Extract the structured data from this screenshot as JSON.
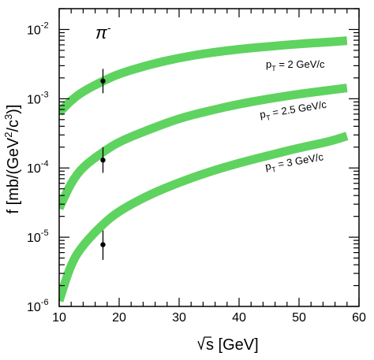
{
  "chart_data": {
    "type": "line",
    "title": "π⁻",
    "title_base": "π",
    "title_sup": "-",
    "xlabel": "√s [GeV]",
    "xlabel_text": "s [GeV]",
    "ylabel": "f [mb/(GeV²/c³)]",
    "ylabel_parts": [
      "f [mb/(GeV",
      "2",
      "/c",
      "3",
      ")]"
    ],
    "xlim": [
      10,
      60
    ],
    "ylim": [
      1e-06,
      0.02
    ],
    "yscale": "log",
    "x_ticks": [
      10,
      20,
      30,
      40,
      50,
      60
    ],
    "y_ticks": [
      {
        "base": "10",
        "exp": "-6"
      },
      {
        "base": "10",
        "exp": "-5"
      },
      {
        "base": "10",
        "exp": "-4"
      },
      {
        "base": "10",
        "exp": "-3"
      },
      {
        "base": "10",
        "exp": "-2"
      }
    ],
    "band_color": "#5fd35f",
    "grid": false,
    "series": [
      {
        "name": "pT = 2 GeV/c",
        "label_parts": [
          "p",
          "T",
          " = 2 GeV/c"
        ],
        "x": [
          10,
          12,
          14,
          17.3,
          20,
          25,
          30,
          35,
          40,
          45,
          50,
          55,
          58
        ],
        "y": [
          0.00063,
          0.00095,
          0.00128,
          0.0018,
          0.0023,
          0.0031,
          0.0039,
          0.0046,
          0.0052,
          0.0057,
          0.0062,
          0.0066,
          0.0069
        ]
      },
      {
        "name": "pT = 2.5 GeV/c",
        "label_parts": [
          "p",
          "T",
          " = 2.5 GeV/c"
        ],
        "x": [
          10,
          12,
          14,
          17.3,
          20,
          25,
          30,
          35,
          40,
          45,
          50,
          55,
          58
        ],
        "y": [
          2.6e-05,
          6.2e-05,
          0.000105,
          0.00017,
          0.00024,
          0.00036,
          0.00052,
          0.00067,
          0.00084,
          0.001,
          0.00117,
          0.00133,
          0.00143
        ]
      },
      {
        "name": "pT = 3 GeV/c",
        "label_parts": [
          "p",
          "T",
          " = 3 GeV/c"
        ],
        "x": [
          10,
          12,
          14,
          17.3,
          20,
          25,
          30,
          35,
          40,
          45,
          50,
          55,
          58
        ],
        "y": [
          1.2e-06,
          4.2e-06,
          7.8e-06,
          1.55e-05,
          2.4e-05,
          4.1e-05,
          6.2e-05,
          8.8e-05,
          0.000118,
          0.000152,
          0.000195,
          0.00024,
          0.00029
        ]
      }
    ],
    "data_points": [
      {
        "x": 17.3,
        "y": 0.0018,
        "ylow": 0.0012,
        "yhigh": 0.0027
      },
      {
        "x": 17.3,
        "y": 0.00013,
        "ylow": 8.5e-05,
        "yhigh": 0.0002
      },
      {
        "x": 17.3,
        "y": 7.8e-06,
        "ylow": 4.7e-06,
        "yhigh": 1.25e-05
      }
    ]
  }
}
